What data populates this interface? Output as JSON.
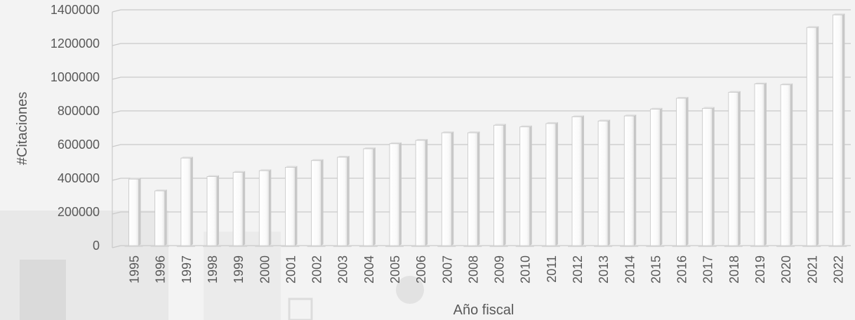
{
  "chart_data": {
    "type": "bar",
    "xlabel": "Año fiscal",
    "ylabel": "#Citaciones",
    "ylim": [
      0,
      1400000
    ],
    "yticks": [
      "0",
      "200000",
      "400000",
      "600000",
      "800000",
      "1000000",
      "1200000",
      "1400000"
    ],
    "grid": true,
    "legend": "none",
    "categories": [
      "1995",
      "1996",
      "1997",
      "1998",
      "1999",
      "2000",
      "2001",
      "2002",
      "2003",
      "2004",
      "2005",
      "2006",
      "2007",
      "2008",
      "2009",
      "2010",
      "2011",
      "2012",
      "2013",
      "2014",
      "2015",
      "2016",
      "2017",
      "2018",
      "2019",
      "2020",
      "2021",
      "2022"
    ],
    "values": [
      395000,
      325000,
      520000,
      410000,
      435000,
      445000,
      465000,
      505000,
      525000,
      575000,
      605000,
      625000,
      670000,
      670000,
      715000,
      705000,
      725000,
      765000,
      740000,
      770000,
      810000,
      875000,
      815000,
      910000,
      960000,
      955000,
      1295000,
      1370000
    ],
    "colors": {
      "bar_face": "#ffffff",
      "bar_side": "#c8c8c8",
      "gridline": "#c9c9c9",
      "text": "#595959"
    }
  }
}
